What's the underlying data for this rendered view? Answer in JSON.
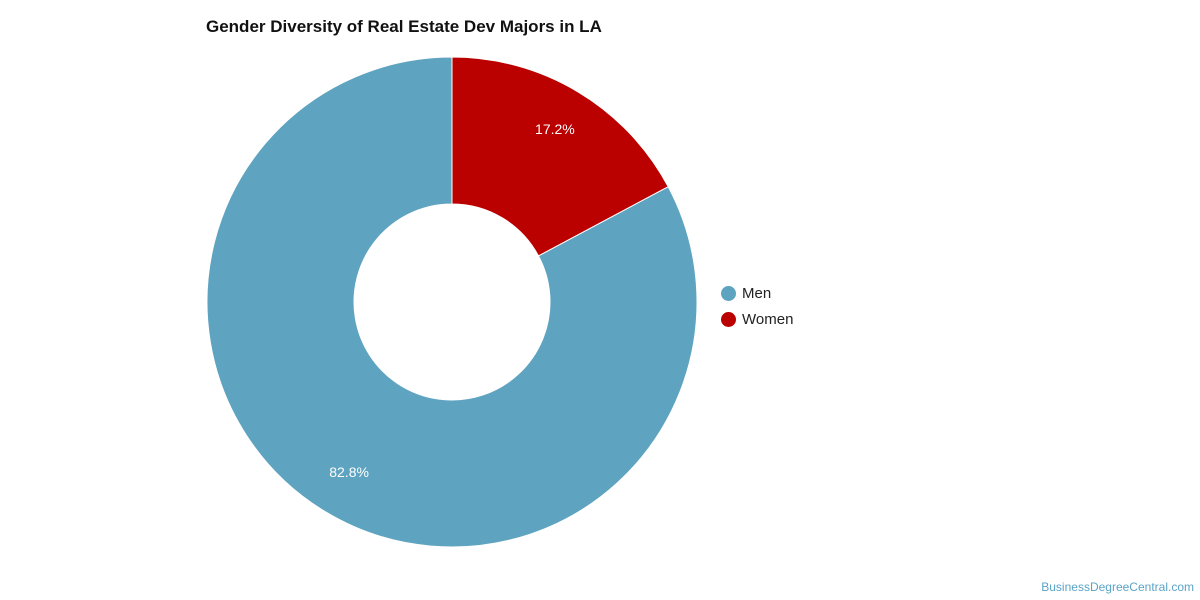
{
  "chart_data": {
    "type": "pie",
    "title": "Gender Diversity of Real Estate Dev Majors in LA",
    "donut": true,
    "categories": [
      "Men",
      "Women"
    ],
    "values": [
      82.8,
      17.2
    ],
    "data_labels": [
      "82.8%",
      "17.2%"
    ],
    "colors": [
      "#5ea3c0",
      "#bb0000"
    ],
    "legend_position": "right"
  },
  "legend": {
    "items": [
      {
        "label": "Men",
        "color": "#5ea3c0"
      },
      {
        "label": "Women",
        "color": "#bb0000"
      }
    ]
  },
  "footer": {
    "credit": "BusinessDegreeCentral.com"
  }
}
